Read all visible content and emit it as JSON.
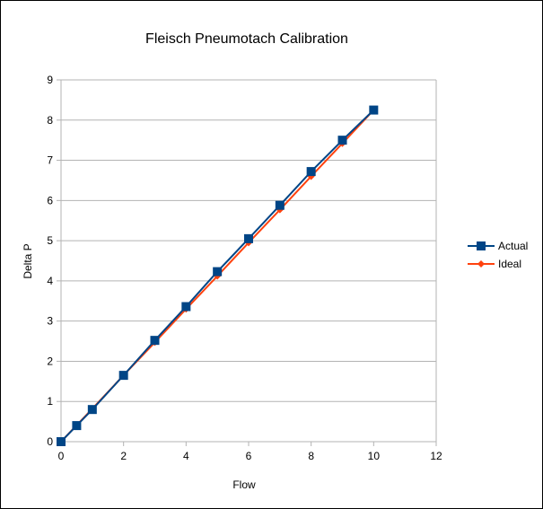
{
  "chart_data": {
    "type": "line",
    "title": "Fleisch Pneumotach Calibration",
    "xlabel": "Flow",
    "ylabel": "Delta P",
    "xlim": [
      0,
      12
    ],
    "ylim": [
      0,
      9
    ],
    "xticks": [
      0,
      2,
      4,
      6,
      8,
      10,
      12
    ],
    "yticks": [
      0,
      1,
      2,
      3,
      4,
      5,
      6,
      7,
      8,
      9
    ],
    "grid": "horizontal",
    "legend_position": "right",
    "series": [
      {
        "name": "Actual",
        "color": "#004586",
        "marker": "square",
        "x": [
          0,
          0.5,
          1,
          2,
          3,
          4,
          5,
          6,
          7,
          8,
          9,
          10
        ],
        "y": [
          0,
          0.4,
          0.8,
          1.65,
          2.52,
          3.36,
          4.23,
          5.05,
          5.88,
          6.72,
          7.5,
          8.25
        ]
      },
      {
        "name": "Ideal",
        "color": "#ff420e",
        "marker": "diamond",
        "x": [
          0,
          0.5,
          1,
          2,
          3,
          4,
          5,
          6,
          7,
          8,
          9,
          10
        ],
        "y": [
          0,
          0.41,
          0.82,
          1.65,
          2.47,
          3.3,
          4.12,
          4.95,
          5.77,
          6.6,
          7.42,
          8.25
        ]
      }
    ]
  }
}
